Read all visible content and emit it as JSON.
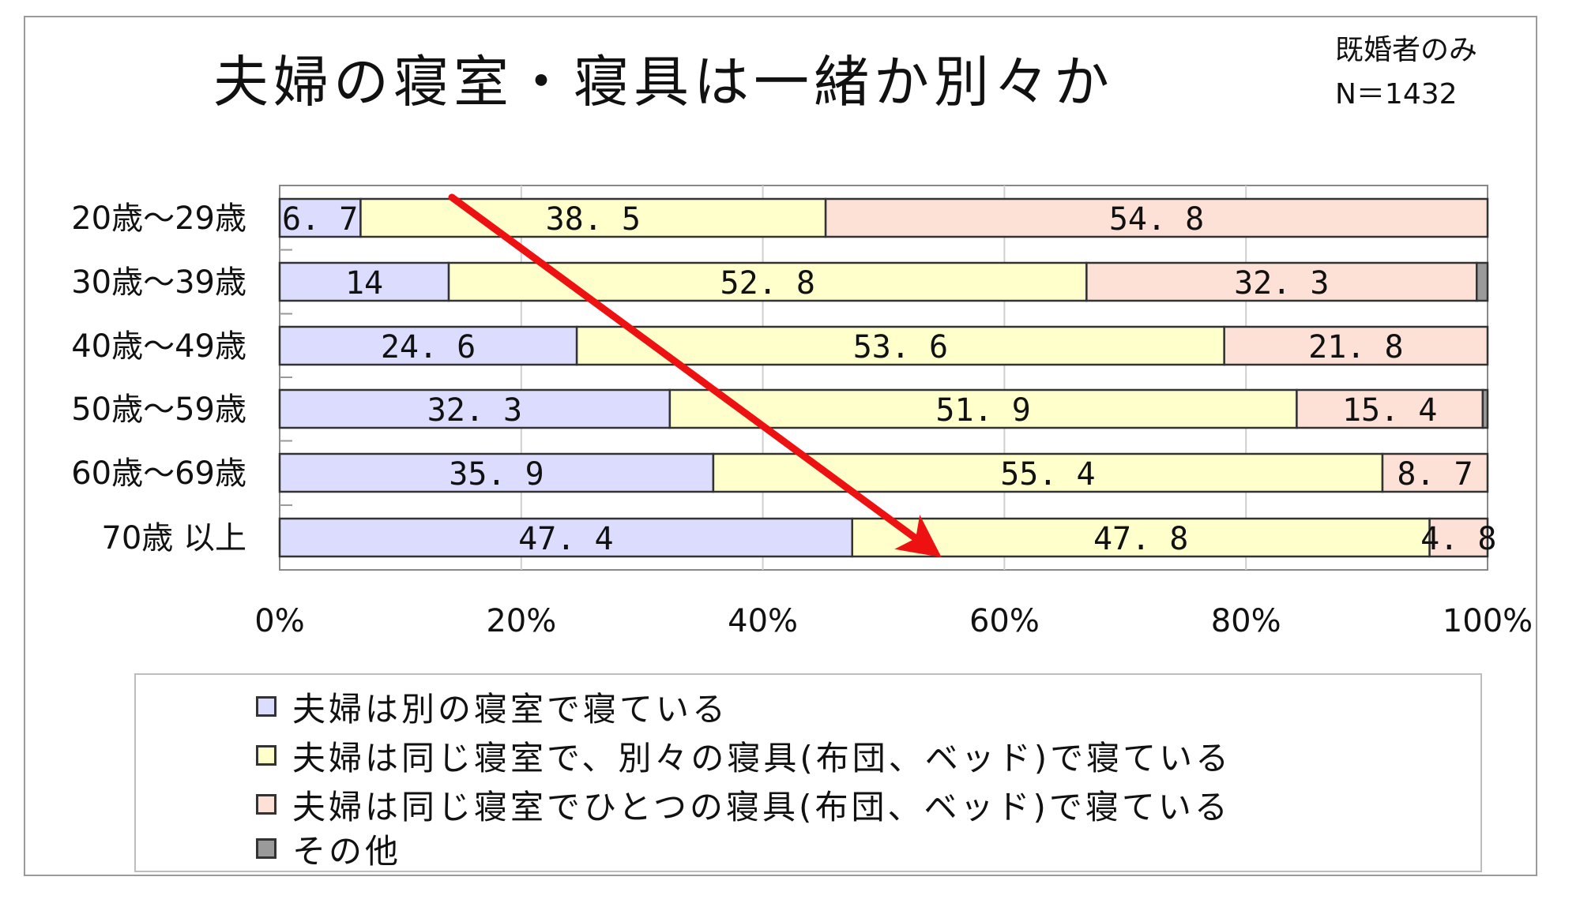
{
  "title": "夫婦の寝室・寝具は一緒か別々か",
  "note": {
    "line1": "既婚者のみ",
    "line2": "N＝1432"
  },
  "colors": {
    "series1": "#dcdcff",
    "series2": "#ffffcc",
    "series3": "#fde0d6",
    "series4": "#9a9a9a",
    "arrow": "#ee1111"
  },
  "chart_data": {
    "type": "bar",
    "orientation": "horizontal",
    "stacked": true,
    "percent": true,
    "title": "夫婦の寝室・寝具は一緒か別々か",
    "categories": [
      "20歳～29歳",
      "30歳～39歳",
      "40歳～49歳",
      "50歳～59歳",
      "60歳～69歳",
      "70歳以上"
    ],
    "category_labels_shown": [
      "20歳～29歳",
      "30歳～39歳",
      "40歳～49歳",
      "50歳～59歳",
      "60歳～69歳",
      "70歳 以上"
    ],
    "series": [
      {
        "name": "夫婦は別の寝室で寝ている",
        "values": [
          6.7,
          14,
          24.6,
          32.3,
          35.9,
          47.4
        ]
      },
      {
        "name": "夫婦は同じ寝室で、別々の寝具(布団、ベッド)で寝ている",
        "values": [
          38.5,
          52.8,
          53.6,
          51.9,
          55.4,
          47.8
        ]
      },
      {
        "name": "夫婦は同じ寝室でひとつの寝具(布団、ベッド)で寝ている",
        "values": [
          54.8,
          32.3,
          21.8,
          15.4,
          8.7,
          4.8
        ]
      },
      {
        "name": "その他",
        "values": [
          0,
          0.9,
          0,
          0.4,
          0,
          0
        ]
      }
    ],
    "data_labels": [
      [
        "6. 7",
        "38. 5",
        "54. 8",
        ""
      ],
      [
        "14",
        "52. 8",
        "32. 3",
        ""
      ],
      [
        "24. 6",
        "53. 6",
        "21. 8",
        ""
      ],
      [
        "32. 3",
        "51. 9",
        "15. 4",
        ""
      ],
      [
        "35. 9",
        "55. 4",
        "8. 7",
        ""
      ],
      [
        "47. 4",
        "47. 8",
        "4. 8",
        ""
      ]
    ],
    "x_ticks": [
      "0%",
      "20%",
      "40%",
      "60%",
      "80%",
      "100%"
    ],
    "xlim": [
      0,
      100
    ],
    "grid": true,
    "legend_position": "bottom",
    "annotation": "red arrow pointing from upper-left to lower-right"
  }
}
